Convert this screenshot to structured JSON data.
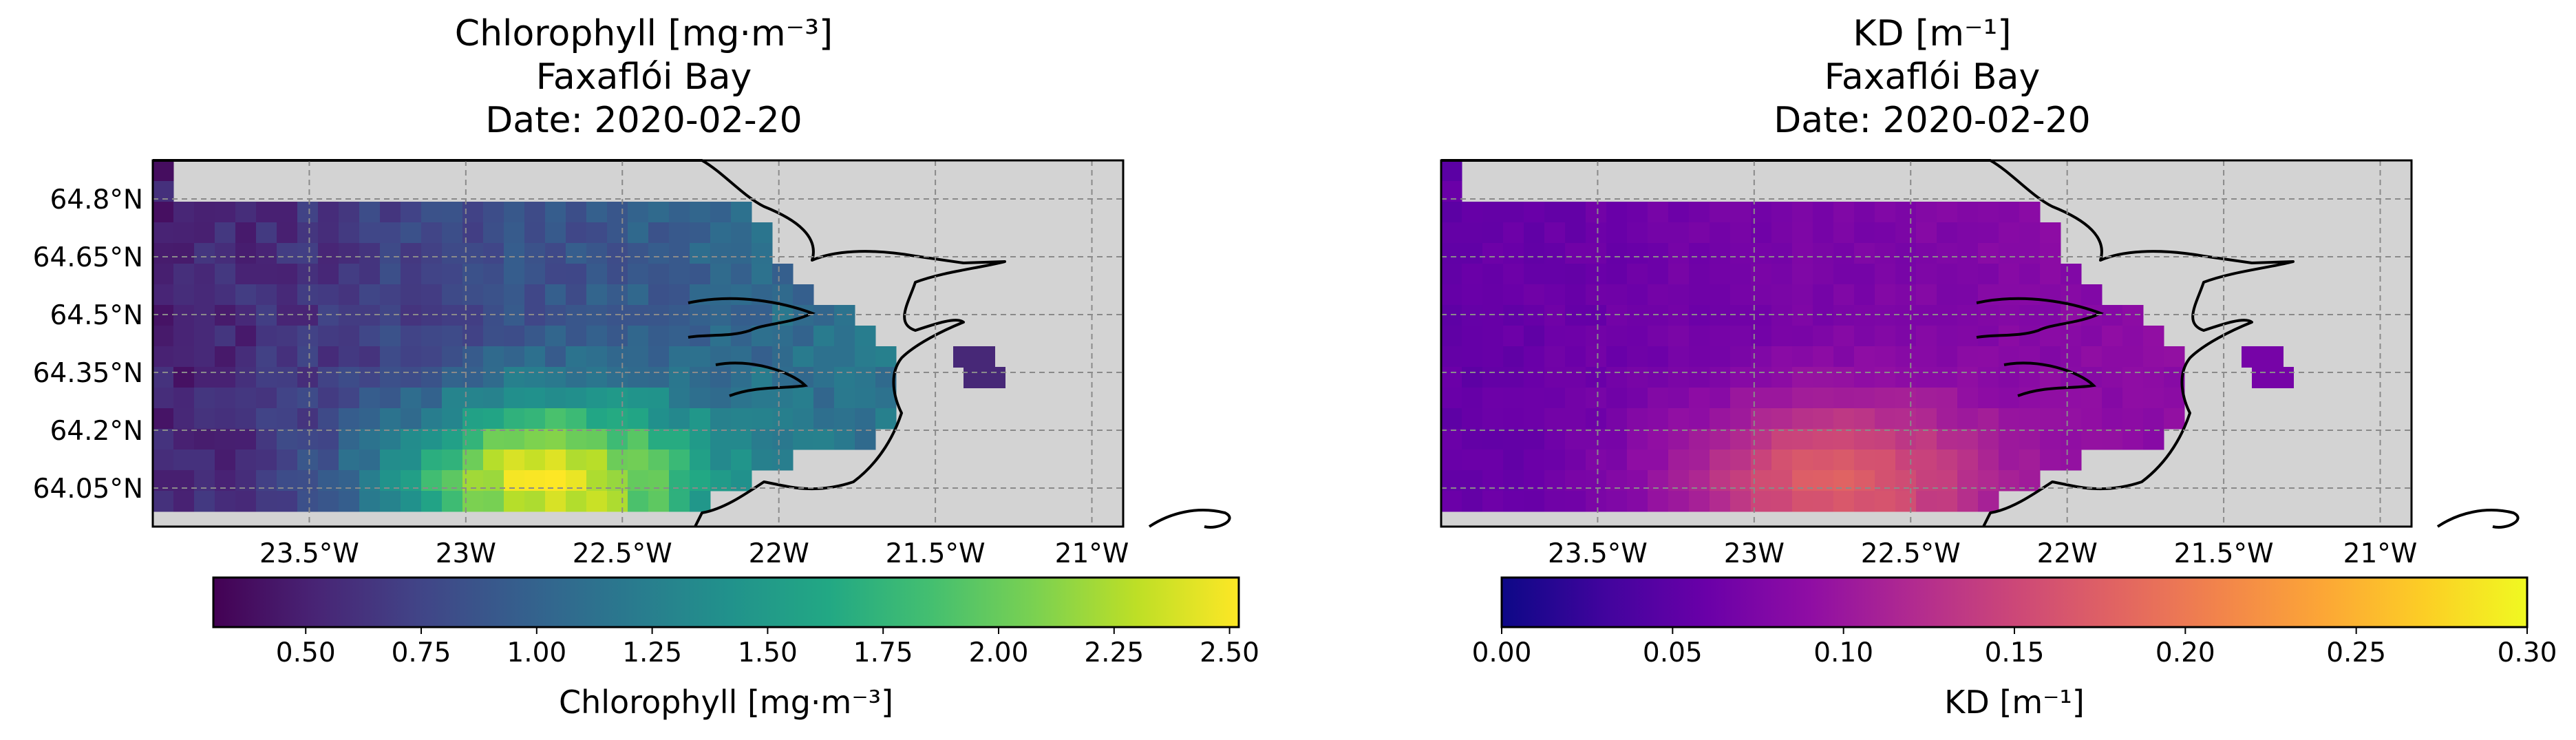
{
  "maps": [
    {
      "id": "chl",
      "title_lines": [
        "Chlorophyll [mg·m⁻³]",
        "Faxaflói Bay",
        "Date: 2020-02-20"
      ],
      "variable": "Chlorophyll",
      "unit": "mg·m⁻³",
      "colormap": "viridis",
      "vmin": 0.3,
      "vmax": 2.52,
      "colorbar_label": "Chlorophyll [mg·m⁻³]",
      "colorbar_ticks": [
        0.5,
        0.75,
        1.0,
        1.25,
        1.5,
        1.75,
        2.0,
        2.25,
        2.5
      ],
      "colorbar_tick_labels": [
        "0.50",
        "0.75",
        "1.00",
        "1.25",
        "1.50",
        "1.75",
        "2.00",
        "2.25",
        "2.50"
      ],
      "lat_tick_labels": [
        "64.8°N",
        "64.65°N",
        "64.5°N",
        "64.35°N",
        "64.2°N",
        "64.05°N"
      ],
      "lon_tick_labels": [
        "23.5°W",
        "23W",
        "22.5°W",
        "22W",
        "21.5°W",
        "21°W"
      ],
      "value_range_observed": "0.45 – 2.5 (yellow maximum near 64.05°N, 22.8°W)"
    },
    {
      "id": "kd",
      "title_lines": [
        "KD [m⁻¹]",
        "Faxaflói Bay",
        "Date: 2020-02-20"
      ],
      "variable": "KD",
      "unit": "m⁻¹",
      "colormap": "plasma",
      "vmin": 0.0,
      "vmax": 0.3,
      "colorbar_label": "KD [m⁻¹]",
      "colorbar_ticks": [
        0.0,
        0.05,
        0.1,
        0.15,
        0.2,
        0.25,
        0.3
      ],
      "colorbar_tick_labels": [
        "0.00",
        "0.05",
        "0.10",
        "0.15",
        "0.20",
        "0.25",
        "0.30"
      ],
      "lat_tick_labels": [],
      "lon_tick_labels": [
        "23.5°W",
        "23W",
        "22.5°W",
        "22W",
        "21.5°W",
        "21°W"
      ],
      "value_range_observed": "0.05 – 0.16 (salmon maximum near 64.05°N, 22.8°W)"
    }
  ],
  "map_extent": {
    "lon_min": -24.0,
    "lon_max": -20.9,
    "lat_min": 63.95,
    "lat_max": 64.9
  },
  "gridlines": {
    "style": "dashed",
    "color": "#8a8a8a",
    "lons": [
      -23.5,
      -23.0,
      -22.5,
      -22.0,
      -21.5,
      -21.0
    ],
    "lats": [
      64.8,
      64.65,
      64.5,
      64.35,
      64.2,
      64.05
    ]
  },
  "colors": {
    "land": "#d3d3d3",
    "coastline": "#000000",
    "frame": "#000000"
  }
}
